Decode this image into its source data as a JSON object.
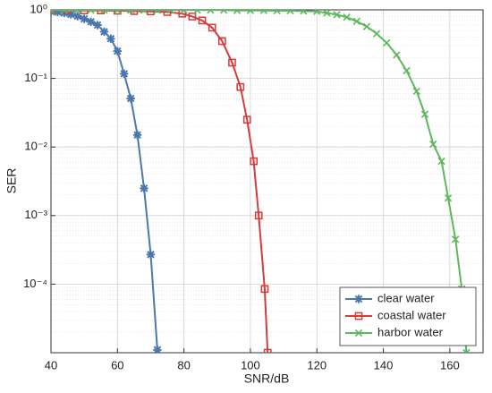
{
  "chart_data": {
    "type": "line",
    "xlabel": "SNR/dB",
    "ylabel": "SER",
    "log_y": true,
    "grid": true,
    "legend": "lower right",
    "xlim": [
      40,
      170
    ],
    "xticks": [
      40,
      60,
      80,
      100,
      120,
      140,
      160
    ],
    "ylim": [
      1e-05,
      1
    ],
    "yticks": [
      {
        "value": 0.0001,
        "label": "10⁻⁴"
      },
      {
        "value": 0.001,
        "label": "10⁻³"
      },
      {
        "value": 0.01,
        "label": "10⁻²"
      },
      {
        "value": 0.1,
        "label": "10⁻¹"
      },
      {
        "value": 1,
        "label": "10⁰"
      }
    ],
    "series": [
      {
        "name": "clear water",
        "color": "#4a78ad",
        "marker": "asterisk",
        "x": [
          40,
          42,
          44,
          46,
          48,
          50,
          52,
          54,
          56,
          58,
          60,
          62,
          64,
          66,
          68,
          70,
          72
        ],
        "values": [
          0.95,
          0.93,
          0.9,
          0.86,
          0.81,
          0.74,
          0.67,
          0.6,
          0.48,
          0.38,
          0.25,
          0.117,
          0.051,
          0.015,
          0.0025,
          0.00027,
          1.1e-05
        ]
      },
      {
        "name": "coastal water",
        "color": "#d43b3b",
        "marker": "square",
        "x": [
          40,
          45,
          50,
          55,
          60,
          65,
          70,
          75,
          79.5,
          82.5,
          85.5,
          88.5,
          91.5,
          94.5,
          97,
          99,
          101,
          102.5,
          104.3,
          105.2
        ],
        "values": [
          0.99,
          0.99,
          0.98,
          0.98,
          0.97,
          0.96,
          0.95,
          0.93,
          0.88,
          0.8,
          0.7,
          0.55,
          0.35,
          0.17,
          0.075,
          0.025,
          0.0062,
          0.001,
          8.5e-05,
          1e-05
        ]
      },
      {
        "name": "harbor water",
        "color": "#5cb85c",
        "marker": "x",
        "x": [
          40,
          44,
          48,
          52,
          56,
          60,
          64,
          68,
          72,
          76,
          80,
          84,
          88,
          92,
          96,
          100,
          104,
          108,
          112,
          116,
          120,
          123,
          126,
          129,
          132,
          135,
          138,
          141,
          144,
          147,
          150,
          152.5,
          155,
          157.5,
          159.5,
          161.7,
          163.6,
          165
        ],
        "values": [
          0.99,
          0.99,
          0.99,
          0.99,
          0.99,
          0.99,
          0.99,
          0.99,
          0.99,
          0.99,
          0.99,
          0.99,
          0.99,
          0.99,
          0.98,
          0.98,
          0.98,
          0.97,
          0.97,
          0.96,
          0.95,
          0.9,
          0.85,
          0.78,
          0.68,
          0.57,
          0.45,
          0.33,
          0.22,
          0.13,
          0.065,
          0.03,
          0.011,
          0.0062,
          0.0018,
          0.00045,
          8.5e-05,
          1e-05
        ]
      }
    ]
  }
}
